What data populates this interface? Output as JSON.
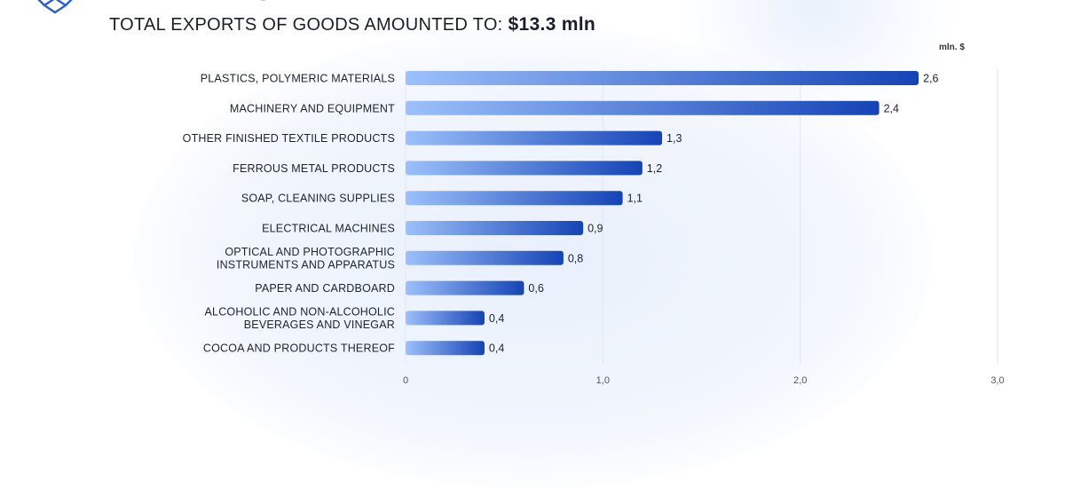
{
  "header": {
    "title": "KAZAKHSTAN",
    "subtitle_prefix": "TOTAL EXPORTS OF GOODS AMOUNTED TO:",
    "subtitle_amount": "$13.3 mln"
  },
  "colors": {
    "bar_start": "#9cc0fb",
    "bar_end": "#1544b6",
    "grid": "#e3e6ee",
    "text": "#1e2230"
  },
  "chart_data": {
    "type": "bar",
    "orientation": "horizontal",
    "unit_label": "mln. $",
    "categories": [
      [
        "PLASTICS, POLYMERIC MATERIALS"
      ],
      [
        "MACHINERY AND EQUIPMENT"
      ],
      [
        "OTHER FINISHED TEXTILE PRODUCTS"
      ],
      [
        "FERROUS METAL PRODUCTS"
      ],
      [
        "SOAP, CLEANING SUPPLIES"
      ],
      [
        "ELECTRICAL MACHINES"
      ],
      [
        "OPTICAL AND PHOTOGRAPHIC",
        "INSTRUMENTS AND APPARATUS"
      ],
      [
        "PAPER AND CARDBOARD"
      ],
      [
        "ALCOHOLIC AND NON-ALCOHOLIC",
        "BEVERAGES AND VINEGAR"
      ],
      [
        "COCOA AND PRODUCTS THEREOF"
      ]
    ],
    "values": [
      2.6,
      2.4,
      1.3,
      1.2,
      1.1,
      0.9,
      0.8,
      0.6,
      0.4,
      0.4
    ],
    "value_labels": [
      "2,6",
      "2,4",
      "1,3",
      "1,2",
      "1,1",
      "0,9",
      "0,8",
      "0,6",
      "0,4",
      "0,4"
    ],
    "x_ticks": [
      0,
      1,
      2,
      3
    ],
    "x_tick_labels": [
      "0",
      "1,0",
      "2,0",
      "3,0"
    ],
    "xlim": [
      0,
      3
    ],
    "grid": true
  }
}
